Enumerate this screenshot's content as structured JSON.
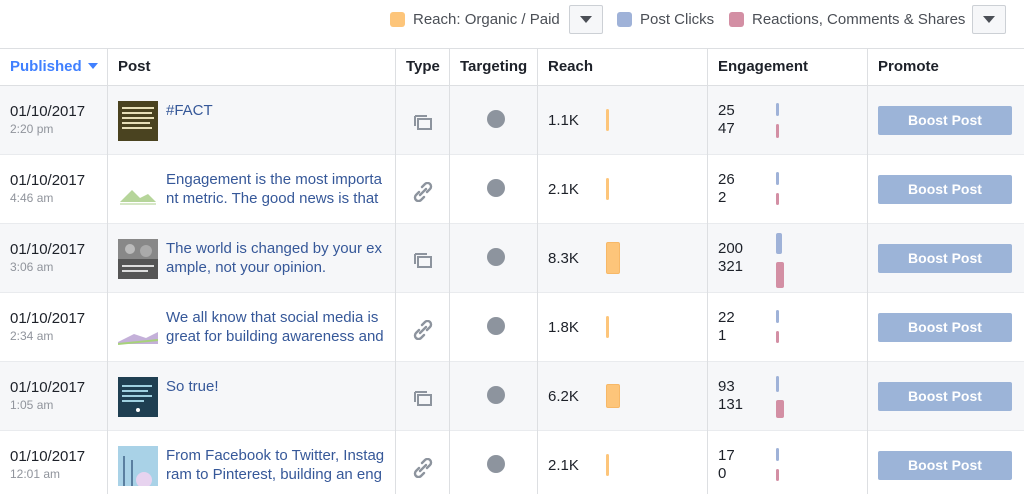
{
  "legend": {
    "reach_label": "Reach: Organic / Paid",
    "clicks_label": "Post Clicks",
    "reactions_label": "Reactions, Comments & Shares",
    "colors": {
      "reach": "#fdc57a",
      "clicks": "#9fb2d8",
      "reactions": "#d38fa4"
    }
  },
  "table": {
    "headers": {
      "published": "Published",
      "post": "Post",
      "type": "Type",
      "targeting": "Targeting",
      "reach": "Reach",
      "engagement": "Engagement",
      "promote": "Promote"
    },
    "rows": [
      {
        "date": "01/10/2017",
        "time": "2:20 pm",
        "post": "#FACT",
        "type": "status-icon",
        "reach": "1.1K",
        "clicks": "25",
        "reactions": "47",
        "boost": "Boost Post",
        "reach_value": 1.1,
        "clicks_value": 25,
        "reactions_value": 47
      },
      {
        "date": "01/10/2017",
        "time": "4:46 am",
        "post": "Engagement is the most important metric. The good news is that",
        "type": "link-icon",
        "reach": "2.1K",
        "clicks": "26",
        "reactions": "2",
        "boost": "Boost Post",
        "reach_value": 2.1,
        "clicks_value": 26,
        "reactions_value": 2
      },
      {
        "date": "01/10/2017",
        "time": "3:06 am",
        "post": "The world is changed by your example, not your opinion.",
        "type": "status-icon",
        "reach": "8.3K",
        "clicks": "200",
        "reactions": "321",
        "boost": "Boost Post",
        "reach_value": 8.3,
        "clicks_value": 200,
        "reactions_value": 321
      },
      {
        "date": "01/10/2017",
        "time": "2:34 am",
        "post": "We all know that social media is great for building awareness and",
        "type": "link-icon",
        "reach": "1.8K",
        "clicks": "22",
        "reactions": "1",
        "boost": "Boost Post",
        "reach_value": 1.8,
        "clicks_value": 22,
        "reactions_value": 1
      },
      {
        "date": "01/10/2017",
        "time": "1:05 am",
        "post": "So true!",
        "type": "status-icon",
        "reach": "6.2K",
        "clicks": "93",
        "reactions": "131",
        "boost": "Boost Post",
        "reach_value": 6.2,
        "clicks_value": 93,
        "reactions_value": 131
      },
      {
        "date": "01/10/2017",
        "time": "12:01 am",
        "post": "From Facebook to Twitter, Instagram to Pinterest, building an eng",
        "type": "link-icon",
        "reach": "2.1K",
        "clicks": "17",
        "reactions": "0",
        "boost": "Boost Post",
        "reach_value": 2.1,
        "clicks_value": 17,
        "reactions_value": 0
      }
    ]
  }
}
